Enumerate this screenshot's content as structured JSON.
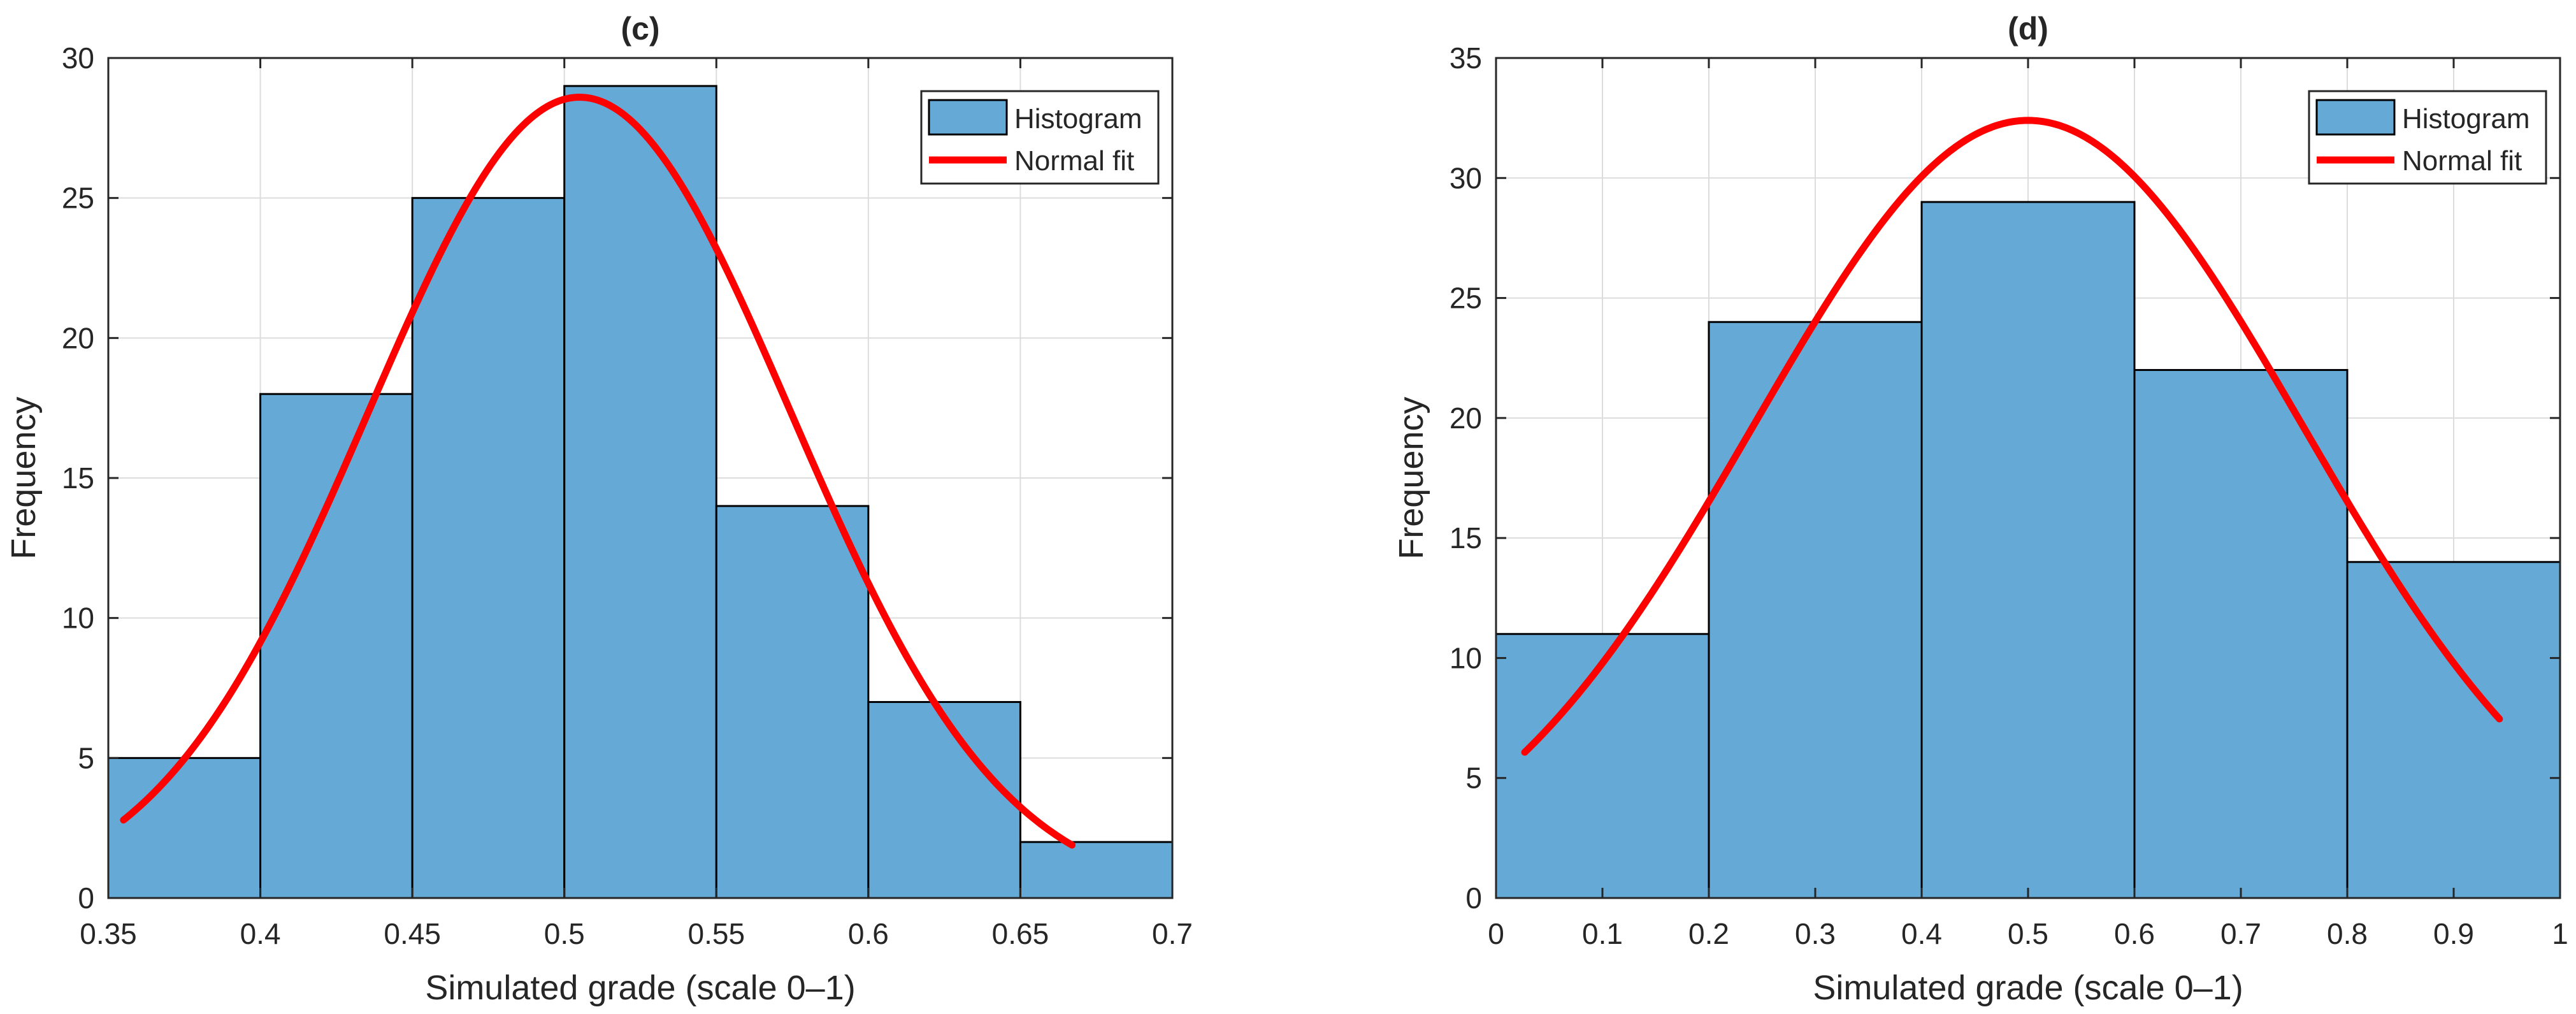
{
  "colors": {
    "bar_fill": "#65a9d7",
    "bar_edge": "#000000",
    "fit_line": "#ff0000",
    "grid": "#dcdcdc",
    "axis": "#262626"
  },
  "chart_data": [
    {
      "id": "c",
      "type": "bar",
      "title": "(c)",
      "xlabel": "Simulated grade (scale 0–1)",
      "ylabel": "Frequency",
      "xlim": [
        0.35,
        0.7
      ],
      "ylim": [
        0,
        30
      ],
      "xticks": [
        0.35,
        0.4,
        0.45,
        0.5,
        0.55,
        0.6,
        0.65,
        0.7
      ],
      "xtick_labels": [
        "0.35",
        "0.4",
        "0.45",
        "0.5",
        "0.55",
        "0.6",
        "0.65",
        "0.7"
      ],
      "yticks": [
        0,
        5,
        10,
        15,
        20,
        25,
        30
      ],
      "ytick_labels": [
        "0",
        "5",
        "10",
        "15",
        "20",
        "25",
        "30"
      ],
      "grid": true,
      "legend_position": "top-right",
      "legend": [
        "Histogram",
        "Normal fit"
      ],
      "histogram": {
        "name": "Histogram",
        "bin_edges": [
          0.35,
          0.4,
          0.45,
          0.5,
          0.55,
          0.6,
          0.65,
          0.7
        ],
        "counts": [
          5,
          18,
          25,
          29,
          14,
          7,
          2
        ]
      },
      "normal_fit": {
        "name": "Normal fit",
        "mean": 0.505,
        "peak": 28.6,
        "sigma": 0.0695,
        "x_range": [
          0.355,
          0.667
        ]
      }
    },
    {
      "id": "d",
      "type": "bar",
      "title": "(d)",
      "xlabel": "Simulated grade (scale 0–1)",
      "ylabel": "Frequency",
      "xlim": [
        0,
        1
      ],
      "ylim": [
        0,
        35
      ],
      "xticks": [
        0,
        0.1,
        0.2,
        0.3,
        0.4,
        0.5,
        0.6,
        0.7,
        0.8,
        0.9,
        1
      ],
      "xtick_labels": [
        "0",
        "0.1",
        "0.2",
        "0.3",
        "0.4",
        "0.5",
        "0.6",
        "0.7",
        "0.8",
        "0.9",
        "1"
      ],
      "yticks": [
        0,
        5,
        10,
        15,
        20,
        25,
        30,
        35
      ],
      "ytick_labels": [
        "0",
        "5",
        "10",
        "15",
        "20",
        "25",
        "30",
        "35"
      ],
      "grid": true,
      "legend_position": "top-right",
      "legend": [
        "Histogram",
        "Normal fit"
      ],
      "histogram": {
        "name": "Histogram",
        "bin_edges": [
          0,
          0.2,
          0.4,
          0.6,
          0.8,
          1.0
        ],
        "counts": [
          11,
          24,
          29,
          22,
          14
        ]
      },
      "normal_fit": {
        "name": "Normal fit",
        "mean": 0.5,
        "peak": 32.4,
        "sigma": 0.2585,
        "x_range": [
          0.027,
          0.943
        ]
      }
    }
  ]
}
